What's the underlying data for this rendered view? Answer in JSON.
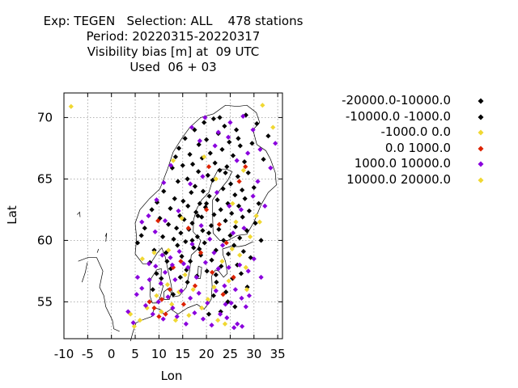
{
  "title_lines": [
    "Exp: TEGEN   Selection: ALL    478 stations",
    "Period: 20220315-20220317",
    "Visibility bias [m] at  09 UTC",
    "Used  06 + 03"
  ],
  "colors": {
    "bin_black": "#000000",
    "bin_yellow": "#f0d832",
    "bin_red": "#dd2200",
    "bin_purple": "#8a00dd",
    "coast": "#000000",
    "grid": "#999999"
  },
  "chart_data": {
    "type": "scatter",
    "title": "Exp: TEGEN   Selection: ALL    478 stations / Period: 20220315-20220317 / Visibility bias [m] at  09 UTC / Used  06 + 03",
    "xlabel": "Lon",
    "ylabel": "Lat",
    "xlim": [
      -10,
      36
    ],
    "ylim": [
      52,
      72
    ],
    "xticks": [
      -10,
      -5,
      0,
      5,
      10,
      15,
      20,
      25,
      30,
      35
    ],
    "yticks": [
      55,
      60,
      65,
      70
    ],
    "grid": true,
    "legend_position": "right",
    "marker": "diamond",
    "series": [
      {
        "name": "-20000.0-10000.0",
        "color": "#000000",
        "points": []
      },
      {
        "name": "-10000.0 -1000.0",
        "color": "#000000",
        "points": [
          [
            5.5,
            59.8
          ],
          [
            6.3,
            60.4
          ],
          [
            7.0,
            61.0
          ],
          [
            8.1,
            58.2
          ],
          [
            8.5,
            62.5
          ],
          [
            9.0,
            59.2
          ],
          [
            9.6,
            63.1
          ],
          [
            10.2,
            61.8
          ],
          [
            10.8,
            60.3
          ],
          [
            11.0,
            64.0
          ],
          [
            11.5,
            59.0
          ],
          [
            12.0,
            61.3
          ],
          [
            12.4,
            62.6
          ],
          [
            12.8,
            65.9
          ],
          [
            13.1,
            60.1
          ],
          [
            13.3,
            63.4
          ],
          [
            13.5,
            66.8
          ],
          [
            13.7,
            61.0
          ],
          [
            13.9,
            59.6
          ],
          [
            14.0,
            64.8
          ],
          [
            14.2,
            67.5
          ],
          [
            14.4,
            62.0
          ],
          [
            14.6,
            60.6
          ],
          [
            14.8,
            58.7
          ],
          [
            15.0,
            66.1
          ],
          [
            15.1,
            63.2
          ],
          [
            15.3,
            61.7
          ],
          [
            15.5,
            68.3
          ],
          [
            15.6,
            59.9
          ],
          [
            15.8,
            57.6
          ],
          [
            16.0,
            65.0
          ],
          [
            16.1,
            62.8
          ],
          [
            16.3,
            60.9
          ],
          [
            16.5,
            67.0
          ],
          [
            16.6,
            58.3
          ],
          [
            16.8,
            63.9
          ],
          [
            17.0,
            61.4
          ],
          [
            17.1,
            66.2
          ],
          [
            17.3,
            59.4
          ],
          [
            17.5,
            69.0
          ],
          [
            17.6,
            64.4
          ],
          [
            17.8,
            62.3
          ],
          [
            18.0,
            57.1
          ],
          [
            18.1,
            60.3
          ],
          [
            18.3,
            65.6
          ],
          [
            18.4,
            67.8
          ],
          [
            18.6,
            63.0
          ],
          [
            18.8,
            58.8
          ],
          [
            19.0,
            61.9
          ],
          [
            19.1,
            66.7
          ],
          [
            19.3,
            64.0
          ],
          [
            19.5,
            69.6
          ],
          [
            19.6,
            59.8
          ],
          [
            19.8,
            62.7
          ],
          [
            20.0,
            68.2
          ],
          [
            20.1,
            57.5
          ],
          [
            20.3,
            65.3
          ],
          [
            20.5,
            60.6
          ],
          [
            20.6,
            63.6
          ],
          [
            20.8,
            67.1
          ],
          [
            21.0,
            61.2
          ],
          [
            21.1,
            58.4
          ],
          [
            21.3,
            64.9
          ],
          [
            21.5,
            69.9
          ],
          [
            21.6,
            62.1
          ],
          [
            21.8,
            66.3
          ],
          [
            22.0,
            59.2
          ],
          [
            22.1,
            56.6
          ],
          [
            22.3,
            63.3
          ],
          [
            22.5,
            68.7
          ],
          [
            22.6,
            60.9
          ],
          [
            22.8,
            65.7
          ],
          [
            23.0,
            62.5
          ],
          [
            23.1,
            57.9
          ],
          [
            23.3,
            67.4
          ],
          [
            23.5,
            64.2
          ],
          [
            23.6,
            60.0
          ],
          [
            23.8,
            69.3
          ],
          [
            24.0,
            61.6
          ],
          [
            24.1,
            55.8
          ],
          [
            24.3,
            66.0
          ],
          [
            24.5,
            63.0
          ],
          [
            24.6,
            58.9
          ],
          [
            24.8,
            68.0
          ],
          [
            25.0,
            60.4
          ],
          [
            25.1,
            64.6
          ],
          [
            25.3,
            62.2
          ],
          [
            25.5,
            56.9
          ],
          [
            25.6,
            66.9
          ],
          [
            25.8,
            59.6
          ],
          [
            26.0,
            63.7
          ],
          [
            26.1,
            61.1
          ],
          [
            26.3,
            69.0
          ],
          [
            26.5,
            58.0
          ],
          [
            26.6,
            65.2
          ],
          [
            26.8,
            62.8
          ],
          [
            27.0,
            60.2
          ],
          [
            27.1,
            67.7
          ],
          [
            27.3,
            57.3
          ],
          [
            27.5,
            64.1
          ],
          [
            27.6,
            61.9
          ],
          [
            27.8,
            59.1
          ],
          [
            28.0,
            66.4
          ],
          [
            28.1,
            63.4
          ],
          [
            28.3,
            70.2
          ],
          [
            28.5,
            60.8
          ],
          [
            28.6,
            56.2
          ],
          [
            28.8,
            65.5
          ],
          [
            29.0,
            62.4
          ],
          [
            29.3,
            58.6
          ],
          [
            29.6,
            67.9
          ],
          [
            30.0,
            64.3
          ],
          [
            30.3,
            61.4
          ],
          [
            30.6,
            69.5
          ],
          [
            31.0,
            63.0
          ],
          [
            31.5,
            60.0
          ],
          [
            32.0,
            66.6
          ],
          [
            33.0,
            68.5
          ],
          [
            21.5,
            55.5
          ],
          [
            23.0,
            54.2
          ],
          [
            24.5,
            55.0
          ],
          [
            26.0,
            54.6
          ],
          [
            20.5,
            54.0
          ],
          [
            22.0,
            57.2
          ],
          [
            18.5,
            59.3
          ],
          [
            17.0,
            60.0
          ],
          [
            19.2,
            60.8
          ],
          [
            16.0,
            56.6
          ],
          [
            14.5,
            57.0
          ],
          [
            12.5,
            57.7
          ],
          [
            11.7,
            58.3
          ],
          [
            13.0,
            55.6
          ],
          [
            10.5,
            56.9
          ],
          [
            9.5,
            57.3
          ],
          [
            8.7,
            56.0
          ],
          [
            20.0,
            63.0
          ],
          [
            24.0,
            65.5
          ],
          [
            26.7,
            68.3
          ],
          [
            22.8,
            70.0
          ],
          [
            18.2,
            62.0
          ]
        ]
      },
      {
        "name": "-1000.0 0.0",
        "color": "#f0d832",
        "points": [
          [
            -8.5,
            70.9
          ],
          [
            4.0,
            54.0
          ],
          [
            4.8,
            53.0
          ],
          [
            6.0,
            53.5
          ],
          [
            7.5,
            54.5
          ],
          [
            9.5,
            55.5
          ],
          [
            10.5,
            54.2
          ],
          [
            11.8,
            56.4
          ],
          [
            12.7,
            54.8
          ],
          [
            13.5,
            53.5
          ],
          [
            14.2,
            55.8
          ],
          [
            15.5,
            57.2
          ],
          [
            16.3,
            53.9
          ],
          [
            17.2,
            56.0
          ],
          [
            19.0,
            54.5
          ],
          [
            20.3,
            55.2
          ],
          [
            21.6,
            56.2
          ],
          [
            22.4,
            53.5
          ],
          [
            23.3,
            58.3
          ],
          [
            24.7,
            56.7
          ],
          [
            25.4,
            59.3
          ],
          [
            26.2,
            61.5
          ],
          [
            27.0,
            58.8
          ],
          [
            28.3,
            57.8
          ],
          [
            29.2,
            60.3
          ],
          [
            30.5,
            62.0
          ],
          [
            31.8,
            71.0
          ],
          [
            34.0,
            69.2
          ],
          [
            22.0,
            65.0
          ],
          [
            19.5,
            66.8
          ],
          [
            12.0,
            59.2
          ],
          [
            9.0,
            59.0
          ],
          [
            6.5,
            58.5
          ],
          [
            14.8,
            61.8
          ],
          [
            25.5,
            63.0
          ],
          [
            27.8,
            65.7
          ],
          [
            31.2,
            61.5
          ],
          [
            23.9,
            53.2
          ],
          [
            13.0,
            66.5
          ],
          [
            28.5,
            56.0
          ]
        ]
      },
      {
        "name": "0.0 1000.0",
        "color": "#dd2200",
        "points": [
          [
            8.0,
            55.0
          ],
          [
            9.0,
            54.5
          ],
          [
            10.0,
            53.8
          ],
          [
            10.6,
            55.2
          ],
          [
            11.4,
            54.0
          ],
          [
            12.3,
            56.0
          ],
          [
            13.0,
            57.8
          ],
          [
            14.6,
            58.3
          ],
          [
            16.2,
            61.0
          ],
          [
            17.6,
            56.3
          ],
          [
            18.8,
            59.0
          ],
          [
            20.0,
            62.5
          ],
          [
            21.2,
            57.4
          ],
          [
            22.7,
            61.3
          ],
          [
            24.2,
            59.8
          ],
          [
            25.7,
            57.0
          ],
          [
            26.9,
            64.8
          ],
          [
            28.2,
            66.0
          ],
          [
            20.5,
            66.0
          ],
          [
            9.8,
            61.6
          ],
          [
            15.2,
            54.8
          ],
          [
            23.5,
            55.6
          ]
        ]
      },
      {
        "name": "1000.0 10000.0",
        "color": "#8a00dd",
        "points": [
          [
            3.5,
            54.2
          ],
          [
            4.6,
            53.3
          ],
          [
            5.3,
            55.6
          ],
          [
            6.4,
            56.1
          ],
          [
            7.2,
            54.7
          ],
          [
            8.0,
            56.8
          ],
          [
            8.7,
            54.0
          ],
          [
            9.3,
            57.9
          ],
          [
            9.9,
            55.0
          ],
          [
            10.4,
            56.5
          ],
          [
            10.9,
            53.6
          ],
          [
            11.3,
            57.4
          ],
          [
            11.9,
            55.4
          ],
          [
            12.4,
            58.6
          ],
          [
            12.9,
            54.5
          ],
          [
            13.4,
            56.8
          ],
          [
            13.8,
            53.8
          ],
          [
            14.3,
            59.1
          ],
          [
            14.7,
            55.9
          ],
          [
            15.2,
            58.1
          ],
          [
            15.7,
            53.2
          ],
          [
            16.1,
            57.8
          ],
          [
            16.6,
            55.3
          ],
          [
            17.0,
            59.7
          ],
          [
            17.5,
            54.1
          ],
          [
            17.9,
            57.0
          ],
          [
            18.4,
            55.7
          ],
          [
            18.9,
            61.2
          ],
          [
            19.3,
            53.6
          ],
          [
            19.8,
            58.2
          ],
          [
            20.2,
            54.9
          ],
          [
            20.7,
            60.1
          ],
          [
            21.1,
            53.1
          ],
          [
            21.6,
            59.0
          ],
          [
            22.0,
            55.9
          ],
          [
            22.5,
            57.7
          ],
          [
            22.9,
            54.0
          ],
          [
            23.4,
            59.6
          ],
          [
            23.8,
            56.3
          ],
          [
            24.3,
            53.7
          ],
          [
            24.7,
            57.8
          ],
          [
            25.2,
            54.9
          ],
          [
            25.6,
            60.6
          ],
          [
            26.1,
            56.0
          ],
          [
            26.5,
            53.2
          ],
          [
            27.0,
            58.0
          ],
          [
            27.4,
            55.3
          ],
          [
            27.9,
            61.0
          ],
          [
            28.3,
            54.6
          ],
          [
            28.8,
            57.5
          ],
          [
            16.9,
            69.2
          ],
          [
            19.7,
            70.0
          ],
          [
            22.5,
            68.8
          ],
          [
            25.0,
            69.6
          ],
          [
            27.7,
            70.1
          ],
          [
            29.8,
            69.0
          ],
          [
            31.3,
            67.4
          ],
          [
            33.5,
            65.9
          ],
          [
            34.5,
            67.9
          ],
          [
            30.8,
            64.8
          ],
          [
            28.7,
            67.1
          ],
          [
            26.4,
            66.5
          ],
          [
            24.6,
            68.4
          ],
          [
            21.8,
            67.7
          ],
          [
            18.6,
            68.1
          ],
          [
            12.5,
            66.1
          ],
          [
            11.0,
            64.7
          ],
          [
            9.5,
            63.3
          ],
          [
            7.8,
            62.0
          ],
          [
            6.4,
            61.5
          ],
          [
            9.2,
            60.7
          ],
          [
            11.3,
            61.6
          ],
          [
            14.1,
            62.4
          ],
          [
            16.6,
            64.6
          ],
          [
            19.2,
            65.2
          ],
          [
            22.2,
            63.9
          ],
          [
            24.8,
            62.8
          ],
          [
            27.3,
            62.5
          ],
          [
            29.8,
            63.6
          ],
          [
            32.3,
            62.8
          ],
          [
            10.7,
            58.8
          ],
          [
            12.8,
            58.0
          ],
          [
            5.5,
            57.0
          ],
          [
            7.9,
            58.1
          ],
          [
            30.0,
            58.5
          ],
          [
            31.5,
            57.0
          ],
          [
            29.0,
            55.5
          ],
          [
            27.5,
            53.0
          ],
          [
            25.8,
            52.9
          ],
          [
            24.0,
            54.8
          ]
        ]
      },
      {
        "name": "10000.0 20000.0",
        "color": "#f0d832",
        "points": []
      }
    ]
  }
}
